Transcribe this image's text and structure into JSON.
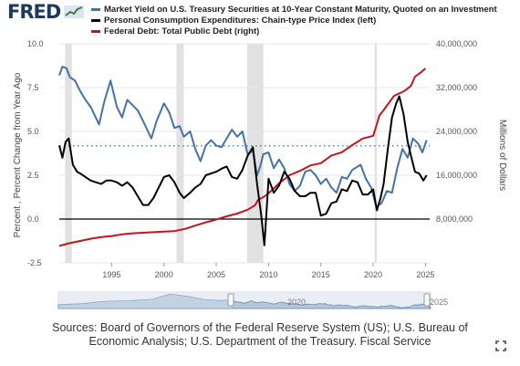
{
  "header": {
    "logo_text": "FRED",
    "legend": [
      {
        "label": "Market Yield on U.S. Treasury Securities at 10-Year Constant Maturity, Quoted on an Investment",
        "color": "#4572a7"
      },
      {
        "label": "Personal Consumption Expenditures: Chain-type Price Index (left)",
        "color": "#000000"
      },
      {
        "label": "Federal Debt: Total Public Debt (right)",
        "color": "#c0161d"
      }
    ]
  },
  "chart_data": {
    "type": "line",
    "ylabel_left": "Percent , Percent Change from Year Ago",
    "ylabel_right": "Millions of Dollars",
    "ylim_left": [
      -2.5,
      10.0
    ],
    "ylim_right": [
      0,
      40000000
    ],
    "left_ticks": [
      "10.0",
      "7.5",
      "5.0",
      "2.5",
      "0.0",
      "-2.5"
    ],
    "right_ticks": [
      "40,000,000",
      "32,000,000",
      "24,000,000",
      "16,000,000",
      "8,000,000"
    ],
    "x_ticks": [
      "1995",
      "2000",
      "2005",
      "2010",
      "2015",
      "2020",
      "2025"
    ],
    "xlim": [
      1990.0,
      2025.4
    ],
    "recessions": [
      [
        1990.55,
        1991.2
      ],
      [
        2001.2,
        2001.9
      ],
      [
        2007.95,
        2009.5
      ],
      [
        2020.15,
        2020.35
      ]
    ],
    "mean_line_left": 4.18,
    "zero_line": 0.0,
    "series": [
      {
        "name": "Market Yield on U.S. Treasury Securities at 10-Year Constant Maturity, Quoted on an Investment",
        "axis": "left",
        "color": "#4572a7",
        "x": [
          1990.0,
          1990.3,
          1990.7,
          1991.0,
          1991.5,
          1992.0,
          1992.5,
          1993.0,
          1993.8,
          1994.3,
          1994.9,
          1995.5,
          1996.0,
          1996.5,
          1997.0,
          1997.5,
          1998.0,
          1998.8,
          1999.3,
          2000.0,
          2000.5,
          2001.0,
          2001.5,
          2001.9,
          2002.5,
          2003.0,
          2003.5,
          2004.0,
          2004.5,
          2005.0,
          2005.5,
          2006.0,
          2006.5,
          2007.0,
          2007.5,
          2008.0,
          2008.5,
          2008.9,
          2009.2,
          2009.5,
          2010.0,
          2010.5,
          2011.0,
          2011.5,
          2012.0,
          2012.5,
          2013.0,
          2013.5,
          2014.0,
          2014.5,
          2015.0,
          2015.5,
          2016.0,
          2016.5,
          2017.0,
          2017.5,
          2018.0,
          2018.8,
          2019.3,
          2019.8,
          2020.3,
          2020.8,
          2021.3,
          2021.8,
          2022.3,
          2022.8,
          2023.3,
          2023.8,
          2024.3,
          2024.7,
          2025.1
        ],
        "y": [
          8.2,
          8.7,
          8.6,
          8.1,
          7.9,
          7.3,
          6.8,
          6.4,
          5.4,
          6.7,
          7.9,
          6.4,
          5.8,
          6.8,
          6.5,
          6.2,
          5.6,
          4.6,
          5.6,
          6.6,
          6.1,
          5.2,
          5.3,
          4.7,
          5.0,
          4.0,
          3.3,
          4.2,
          4.5,
          4.2,
          4.1,
          4.6,
          5.1,
          4.7,
          5.0,
          3.7,
          3.9,
          2.5,
          3.0,
          3.7,
          3.8,
          2.9,
          3.4,
          2.9,
          2.0,
          1.6,
          1.9,
          2.7,
          2.8,
          2.5,
          2.0,
          2.3,
          1.8,
          1.5,
          2.4,
          2.3,
          2.8,
          3.1,
          2.3,
          1.8,
          0.7,
          0.9,
          1.6,
          1.5,
          2.9,
          4.0,
          3.5,
          4.6,
          4.3,
          3.8,
          4.5
        ]
      },
      {
        "name": "Personal Consumption Expenditures: Chain-type Price Index (left)",
        "axis": "left",
        "color": "#000000",
        "x": [
          1990.0,
          1990.3,
          1990.6,
          1990.9,
          1991.3,
          1991.7,
          1992.0,
          1992.5,
          1993.0,
          1993.5,
          1994.0,
          1994.5,
          1995.0,
          1995.5,
          1996.0,
          1996.5,
          1997.0,
          1997.5,
          1998.0,
          1998.5,
          1999.0,
          1999.5,
          2000.0,
          2000.5,
          2001.0,
          2001.5,
          2001.9,
          2002.5,
          2003.0,
          2003.5,
          2004.0,
          2004.5,
          2005.0,
          2005.6,
          2006.0,
          2006.5,
          2007.0,
          2007.5,
          2008.0,
          2008.5,
          2008.9,
          2009.3,
          2009.6,
          2010.0,
          2010.5,
          2011.0,
          2011.5,
          2012.0,
          2012.5,
          2013.0,
          2013.5,
          2014.0,
          2014.5,
          2015.0,
          2015.5,
          2016.0,
          2016.5,
          2017.0,
          2017.5,
          2018.0,
          2018.5,
          2019.0,
          2019.5,
          2020.0,
          2020.35,
          2020.7,
          2021.0,
          2021.4,
          2021.8,
          2022.2,
          2022.5,
          2022.9,
          2023.3,
          2023.7,
          2024.0,
          2024.4,
          2024.8,
          2025.1
        ],
        "y": [
          4.2,
          3.5,
          4.4,
          4.6,
          3.1,
          2.7,
          2.6,
          2.4,
          2.2,
          2.1,
          2.0,
          2.2,
          2.2,
          2.1,
          1.9,
          2.1,
          1.8,
          1.3,
          0.8,
          0.8,
          1.2,
          1.8,
          2.4,
          2.5,
          2.1,
          1.5,
          1.2,
          1.5,
          1.8,
          2.0,
          2.5,
          2.6,
          2.7,
          2.9,
          3.0,
          2.4,
          2.3,
          2.8,
          3.6,
          4.1,
          2.0,
          0.2,
          -1.5,
          2.3,
          1.5,
          1.9,
          2.7,
          2.3,
          1.6,
          1.3,
          1.3,
          1.5,
          1.5,
          0.2,
          0.3,
          0.9,
          1.0,
          1.7,
          1.6,
          2.2,
          2.1,
          1.4,
          1.4,
          1.7,
          0.5,
          1.2,
          2.0,
          4.0,
          5.8,
          6.6,
          7.0,
          6.0,
          4.4,
          3.4,
          2.7,
          2.6,
          2.2,
          2.5
        ]
      },
      {
        "name": "Federal Debt: Total Public Debt (right)",
        "axis": "right",
        "color": "#c0161d",
        "x": [
          1990.0,
          1991.0,
          1992.0,
          1993.0,
          1994.0,
          1995.0,
          1996.0,
          1997.0,
          1998.0,
          1999.0,
          2000.0,
          2001.0,
          2002.0,
          2003.0,
          2004.0,
          2005.0,
          2006.0,
          2007.0,
          2008.0,
          2008.7,
          2009.0,
          2009.5,
          2010.0,
          2011.0,
          2012.0,
          2013.0,
          2014.0,
          2015.0,
          2016.0,
          2017.0,
          2018.0,
          2019.0,
          2020.0,
          2020.3,
          2020.6,
          2021.0,
          2022.0,
          2023.0,
          2023.6,
          2024.0,
          2024.5,
          2025.0
        ],
        "y": [
          3100000,
          3600000,
          4000000,
          4400000,
          4700000,
          4900000,
          5200000,
          5400000,
          5500000,
          5600000,
          5700000,
          5800000,
          6200000,
          6800000,
          7400000,
          7900000,
          8500000,
          9000000,
          9700000,
          10500000,
          11500000,
          12000000,
          12700000,
          14500000,
          16000000,
          16800000,
          17800000,
          18200000,
          19600000,
          20200000,
          21500000,
          22700000,
          23200000,
          25000000,
          26900000,
          27900000,
          30500000,
          31400000,
          32300000,
          34000000,
          34700000,
          35500000
        ]
      }
    ]
  },
  "source": {
    "text": "Sources: Board of Governors of the Federal Reserve System (US); U.S. Bureau of Economic Analysis; U.S. Department of the Treasury. Fiscal Service"
  },
  "navigator": {
    "start_label": "",
    "end_label": "2025",
    "mid_label": "2020",
    "line_color": "#4572a7",
    "fill_color": "#aebfd9"
  }
}
